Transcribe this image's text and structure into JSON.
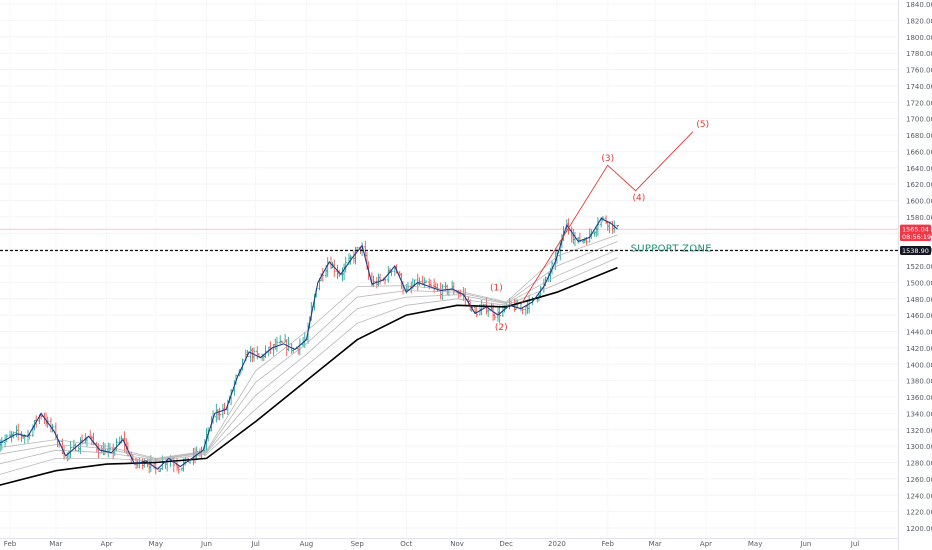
{
  "chart_data": {
    "type": "line",
    "title": "",
    "xlabel": "",
    "ylabel": "",
    "ylim": [
      1190,
      1845
    ],
    "y_ticks": [
      1200,
      1220,
      1240,
      1260,
      1280,
      1300,
      1320,
      1340,
      1360,
      1380,
      1400,
      1420,
      1440,
      1460,
      1480,
      1500,
      1520,
      1540,
      1560,
      1580,
      1600,
      1620,
      1640,
      1660,
      1680,
      1700,
      1720,
      1740,
      1760,
      1780,
      1800,
      1820,
      1840
    ],
    "y_tick_labels": [
      "1200.00",
      "1220.00",
      "1240.00",
      "1260.00",
      "1280.00",
      "1300.00",
      "1320.00",
      "1340.00",
      "1360.00",
      "1380.00",
      "1400.00",
      "1420.00",
      "1440.00",
      "1460.00",
      "1480.00",
      "1500.00",
      "1520.00",
      "1540.00",
      "1560.00",
      "1580.00",
      "1600.00",
      "1620.00",
      "1640.00",
      "1660.00",
      "1680.00",
      "1700.00",
      "1720.00",
      "1740.00",
      "1760.00",
      "1780.00",
      "1800.00",
      "1820.00",
      "1840.00"
    ],
    "x_range": [
      "2019-02-01",
      "2020-07-30"
    ],
    "x_ticks": [
      {
        "date": "2019-02-01",
        "label": "Feb"
      },
      {
        "date": "2019-03-01",
        "label": "Mar"
      },
      {
        "date": "2019-04-01",
        "label": "Apr"
      },
      {
        "date": "2019-05-01",
        "label": "May"
      },
      {
        "date": "2019-06-01",
        "label": "Jun"
      },
      {
        "date": "2019-07-01",
        "label": "Jul"
      },
      {
        "date": "2019-08-01",
        "label": "Aug"
      },
      {
        "date": "2019-09-01",
        "label": "Sep"
      },
      {
        "date": "2019-10-01",
        "label": "Oct"
      },
      {
        "date": "2019-11-01",
        "label": "Nov"
      },
      {
        "date": "2019-12-01",
        "label": "Dec"
      },
      {
        "date": "2020-01-01",
        "label": "2020"
      },
      {
        "date": "2020-02-01",
        "label": "Feb"
      },
      {
        "date": "2020-03-01",
        "label": "Mar"
      },
      {
        "date": "2020-04-01",
        "label": "Apr"
      },
      {
        "date": "2020-05-01",
        "label": "May"
      },
      {
        "date": "2020-06-01",
        "label": "Jun"
      },
      {
        "date": "2020-07-01",
        "label": "Jul"
      }
    ],
    "price_series": [
      {
        "date": "2019-01-25",
        "value": 1303
      },
      {
        "date": "2019-02-05",
        "value": 1315
      },
      {
        "date": "2019-02-12",
        "value": 1312
      },
      {
        "date": "2019-02-20",
        "value": 1340
      },
      {
        "date": "2019-02-28",
        "value": 1318
      },
      {
        "date": "2019-03-07",
        "value": 1288
      },
      {
        "date": "2019-03-14",
        "value": 1300
      },
      {
        "date": "2019-03-21",
        "value": 1312
      },
      {
        "date": "2019-03-28",
        "value": 1295
      },
      {
        "date": "2019-04-04",
        "value": 1292
      },
      {
        "date": "2019-04-11",
        "value": 1308
      },
      {
        "date": "2019-04-18",
        "value": 1278
      },
      {
        "date": "2019-04-25",
        "value": 1282
      },
      {
        "date": "2019-05-02",
        "value": 1272
      },
      {
        "date": "2019-05-09",
        "value": 1285
      },
      {
        "date": "2019-05-16",
        "value": 1275
      },
      {
        "date": "2019-05-23",
        "value": 1285
      },
      {
        "date": "2019-05-30",
        "value": 1295
      },
      {
        "date": "2019-06-06",
        "value": 1340
      },
      {
        "date": "2019-06-13",
        "value": 1345
      },
      {
        "date": "2019-06-20",
        "value": 1385
      },
      {
        "date": "2019-06-27",
        "value": 1415
      },
      {
        "date": "2019-07-04",
        "value": 1408
      },
      {
        "date": "2019-07-11",
        "value": 1420
      },
      {
        "date": "2019-07-18",
        "value": 1425
      },
      {
        "date": "2019-07-25",
        "value": 1418
      },
      {
        "date": "2019-08-01",
        "value": 1430
      },
      {
        "date": "2019-08-08",
        "value": 1500
      },
      {
        "date": "2019-08-15",
        "value": 1525
      },
      {
        "date": "2019-08-22",
        "value": 1510
      },
      {
        "date": "2019-08-29",
        "value": 1530
      },
      {
        "date": "2019-09-04",
        "value": 1545
      },
      {
        "date": "2019-09-10",
        "value": 1498
      },
      {
        "date": "2019-09-17",
        "value": 1503
      },
      {
        "date": "2019-09-24",
        "value": 1520
      },
      {
        "date": "2019-10-01",
        "value": 1488
      },
      {
        "date": "2019-10-08",
        "value": 1500
      },
      {
        "date": "2019-10-15",
        "value": 1495
      },
      {
        "date": "2019-10-22",
        "value": 1490
      },
      {
        "date": "2019-10-29",
        "value": 1492
      },
      {
        "date": "2019-11-05",
        "value": 1485
      },
      {
        "date": "2019-11-12",
        "value": 1462
      },
      {
        "date": "2019-11-19",
        "value": 1470
      },
      {
        "date": "2019-11-26",
        "value": 1460
      },
      {
        "date": "2019-12-03",
        "value": 1472
      },
      {
        "date": "2019-12-10",
        "value": 1468
      },
      {
        "date": "2019-12-17",
        "value": 1476
      },
      {
        "date": "2019-12-24",
        "value": 1495
      },
      {
        "date": "2019-12-31",
        "value": 1525
      },
      {
        "date": "2020-01-07",
        "value": 1570
      },
      {
        "date": "2020-01-14",
        "value": 1550
      },
      {
        "date": "2020-01-21",
        "value": 1555
      },
      {
        "date": "2020-01-28",
        "value": 1578
      },
      {
        "date": "2020-02-03",
        "value": 1572
      },
      {
        "date": "2020-02-07",
        "value": 1565
      }
    ],
    "moving_average_heavy": [
      {
        "date": "2019-01-25",
        "value": 1252
      },
      {
        "date": "2019-03-01",
        "value": 1270
      },
      {
        "date": "2019-04-01",
        "value": 1278
      },
      {
        "date": "2019-05-01",
        "value": 1280
      },
      {
        "date": "2019-06-01",
        "value": 1285
      },
      {
        "date": "2019-07-01",
        "value": 1330
      },
      {
        "date": "2019-08-01",
        "value": 1380
      },
      {
        "date": "2019-09-01",
        "value": 1430
      },
      {
        "date": "2019-10-01",
        "value": 1460
      },
      {
        "date": "2019-11-01",
        "value": 1472
      },
      {
        "date": "2019-12-01",
        "value": 1470
      },
      {
        "date": "2020-01-01",
        "value": 1488
      },
      {
        "date": "2020-02-07",
        "value": 1518
      }
    ],
    "moving_averages_light": [
      [
        {
          "date": "2019-01-25",
          "value": 1265
        },
        {
          "date": "2019-03-01",
          "value": 1285
        },
        {
          "date": "2019-04-01",
          "value": 1285
        },
        {
          "date": "2019-05-01",
          "value": 1282
        },
        {
          "date": "2019-06-01",
          "value": 1290
        },
        {
          "date": "2019-07-01",
          "value": 1345
        },
        {
          "date": "2019-08-01",
          "value": 1398
        },
        {
          "date": "2019-09-01",
          "value": 1450
        },
        {
          "date": "2019-10-01",
          "value": 1472
        },
        {
          "date": "2019-11-01",
          "value": 1480
        },
        {
          "date": "2019-12-01",
          "value": 1472
        },
        {
          "date": "2020-01-01",
          "value": 1498
        },
        {
          "date": "2020-02-07",
          "value": 1530
        }
      ],
      [
        {
          "date": "2019-01-25",
          "value": 1278
        },
        {
          "date": "2019-03-01",
          "value": 1295
        },
        {
          "date": "2019-04-01",
          "value": 1292
        },
        {
          "date": "2019-05-01",
          "value": 1283
        },
        {
          "date": "2019-06-01",
          "value": 1292
        },
        {
          "date": "2019-07-01",
          "value": 1362
        },
        {
          "date": "2019-08-01",
          "value": 1412
        },
        {
          "date": "2019-09-01",
          "value": 1468
        },
        {
          "date": "2019-10-01",
          "value": 1482
        },
        {
          "date": "2019-11-01",
          "value": 1485
        },
        {
          "date": "2019-12-01",
          "value": 1474
        },
        {
          "date": "2020-01-01",
          "value": 1508
        },
        {
          "date": "2020-02-07",
          "value": 1540
        }
      ],
      [
        {
          "date": "2019-01-25",
          "value": 1290
        },
        {
          "date": "2019-03-01",
          "value": 1302
        },
        {
          "date": "2019-04-01",
          "value": 1297
        },
        {
          "date": "2019-05-01",
          "value": 1284
        },
        {
          "date": "2019-06-01",
          "value": 1293
        },
        {
          "date": "2019-07-01",
          "value": 1378
        },
        {
          "date": "2019-08-01",
          "value": 1425
        },
        {
          "date": "2019-09-01",
          "value": 1482
        },
        {
          "date": "2019-10-01",
          "value": 1490
        },
        {
          "date": "2019-11-01",
          "value": 1488
        },
        {
          "date": "2019-12-01",
          "value": 1475
        },
        {
          "date": "2020-01-01",
          "value": 1520
        },
        {
          "date": "2020-02-07",
          "value": 1550
        }
      ],
      [
        {
          "date": "2019-01-25",
          "value": 1298
        },
        {
          "date": "2019-03-01",
          "value": 1308
        },
        {
          "date": "2019-04-01",
          "value": 1300
        },
        {
          "date": "2019-05-01",
          "value": 1285
        },
        {
          "date": "2019-06-01",
          "value": 1294
        },
        {
          "date": "2019-07-01",
          "value": 1392
        },
        {
          "date": "2019-08-01",
          "value": 1440
        },
        {
          "date": "2019-09-01",
          "value": 1495
        },
        {
          "date": "2019-10-01",
          "value": 1496
        },
        {
          "date": "2019-11-01",
          "value": 1490
        },
        {
          "date": "2019-12-01",
          "value": 1476
        },
        {
          "date": "2020-01-01",
          "value": 1532
        },
        {
          "date": "2020-02-07",
          "value": 1558
        }
      ]
    ],
    "annotations": {
      "wave_labels": [
        {
          "label": "(1)",
          "date": "2019-11-25",
          "value": 1490
        },
        {
          "label": "(2)",
          "date": "2019-11-28",
          "value": 1442
        },
        {
          "label": "(3)",
          "date": "2020-02-01",
          "value": 1648
        },
        {
          "label": "(4)",
          "date": "2020-02-20",
          "value": 1600
        },
        {
          "label": "(5)",
          "date": "2020-03-30",
          "value": 1690
        }
      ],
      "wave_path": [
        {
          "date": "2019-12-10",
          "value": 1473
        },
        {
          "date": "2020-02-01",
          "value": 1643
        },
        {
          "date": "2020-02-18",
          "value": 1612
        },
        {
          "date": "2020-03-24",
          "value": 1684
        }
      ],
      "support_zone_label": "SUPPORT ZONE",
      "support_zone_date": "2020-02-15",
      "support_zone_value": 1540,
      "support_level": 1538.9,
      "current_price_line": 1565.04
    },
    "price_tags": [
      {
        "label": "1565.04",
        "value": 1565.04,
        "color": "#f23645"
      },
      {
        "label": "08:56:19",
        "value": 1556,
        "color": "#f23645"
      },
      {
        "label": "1538.90",
        "value": 1538.9,
        "color": "#131722"
      }
    ],
    "colors": {
      "up_bar": "#26a69a",
      "down_bar": "#ef5350",
      "price_line": "#1e3a8a",
      "heavy_ma": "#000000",
      "light_ma": "#b0b0b0",
      "wave": "#e53935",
      "support_text": "#1f8f78",
      "price_tag": "#f23645",
      "support_tag": "#131722"
    }
  }
}
